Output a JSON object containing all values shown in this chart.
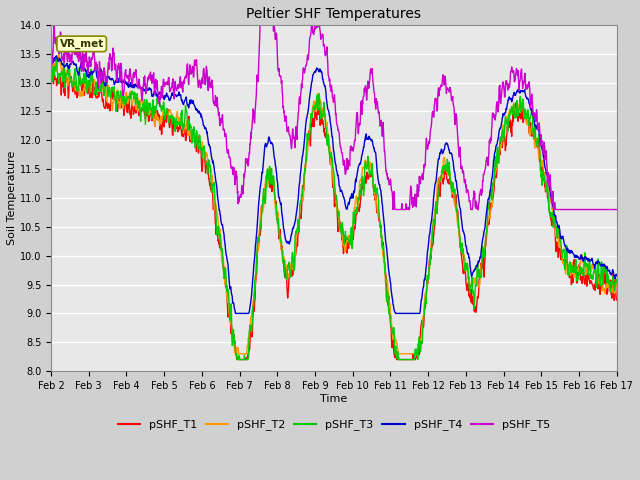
{
  "title": "Peltier SHF Temperatures",
  "xlabel": "Time",
  "ylabel": "Soil Temperature",
  "ylim": [
    8.0,
    14.0
  ],
  "yticks": [
    8.0,
    8.5,
    9.0,
    9.5,
    10.0,
    10.5,
    11.0,
    11.5,
    12.0,
    12.5,
    13.0,
    13.5,
    14.0
  ],
  "xtick_labels": [
    "Feb 2",
    "Feb 3",
    "Feb 4",
    "Feb 5",
    "Feb 6",
    "Feb 7",
    "Feb 8",
    "Feb 9",
    "Feb 10",
    "Feb 11",
    "Feb 12",
    "Feb 13",
    "Feb 14",
    "Feb 15",
    "Feb 16",
    "Feb 17"
  ],
  "colors": {
    "pSHF_T1": "#ff0000",
    "pSHF_T2": "#ff9900",
    "pSHF_T3": "#00cc00",
    "pSHF_T4": "#0000cc",
    "pSHF_T5": "#cc00cc"
  },
  "legend_label": "VR_met",
  "linewidth": 1.0
}
